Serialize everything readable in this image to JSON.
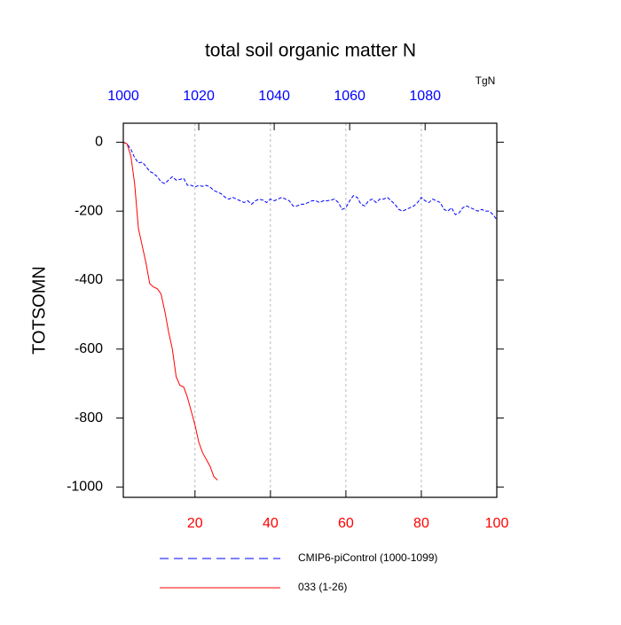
{
  "chart_data": {
    "type": "line",
    "title": "total soil organic matter N",
    "ylabel": "TOTSOMN",
    "x2_units": "TgN",
    "xlim": [
      1,
      100
    ],
    "xticks": [
      20,
      40,
      60,
      80,
      100
    ],
    "xtick_color": "#ff0000",
    "x2lim": [
      1000,
      1099
    ],
    "x2ticks": [
      1000,
      1020,
      1040,
      1060,
      1080
    ],
    "x2tick_color": "#0000ff",
    "ylim": [
      -1030,
      55
    ],
    "yticks": [
      0,
      -200,
      -400,
      -600,
      -800,
      -1000
    ],
    "grid": true,
    "series": [
      {
        "name": "CMIP6-piControl (1000-1099)",
        "color": "#0000ff",
        "dashed": true,
        "x": [
          1,
          2,
          3,
          4,
          5,
          6,
          7,
          8,
          9,
          10,
          11,
          12,
          13,
          14,
          15,
          16,
          17,
          18,
          19,
          20,
          21,
          22,
          23,
          24,
          25,
          26,
          27,
          28,
          29,
          30,
          31,
          32,
          33,
          34,
          35,
          36,
          37,
          38,
          39,
          40,
          41,
          42,
          43,
          44,
          45,
          46,
          47,
          48,
          49,
          50,
          51,
          52,
          53,
          54,
          55,
          56,
          57,
          58,
          59,
          60,
          61,
          62,
          63,
          64,
          65,
          66,
          67,
          68,
          69,
          70,
          71,
          72,
          73,
          74,
          75,
          76,
          77,
          78,
          79,
          80,
          81,
          82,
          83,
          84,
          85,
          86,
          87,
          88,
          89,
          90,
          91,
          92,
          93,
          94,
          95,
          96,
          97,
          98,
          99,
          100
        ],
        "values": [
          0,
          -5,
          -20,
          -45,
          -60,
          -58,
          -70,
          -85,
          -90,
          -100,
          -115,
          -120,
          -110,
          -100,
          -110,
          -108,
          -105,
          -125,
          -125,
          -130,
          -125,
          -128,
          -125,
          -130,
          -140,
          -145,
          -150,
          -160,
          -165,
          -160,
          -165,
          -170,
          -175,
          -170,
          -180,
          -170,
          -165,
          -168,
          -175,
          -165,
          -170,
          -165,
          -160,
          -165,
          -170,
          -185,
          -185,
          -180,
          -180,
          -175,
          -170,
          -170,
          -175,
          -170,
          -170,
          -168,
          -165,
          -175,
          -195,
          -190,
          -170,
          -155,
          -160,
          -180,
          -185,
          -170,
          -165,
          -175,
          -165,
          -165,
          -160,
          -170,
          -180,
          -195,
          -200,
          -195,
          -190,
          -185,
          -175,
          -160,
          -170,
          -175,
          -165,
          -170,
          -175,
          -195,
          -200,
          -190,
          -210,
          -205,
          -190,
          -185,
          -190,
          -195,
          -200,
          -195,
          -200,
          -200,
          -210,
          -225
        ]
      },
      {
        "name": "033 (1-26)",
        "color": "#ff0000",
        "dashed": false,
        "x": [
          1,
          2,
          3,
          4,
          5,
          6,
          7,
          8,
          9,
          10,
          11,
          12,
          13,
          14,
          15,
          16,
          17,
          18,
          19,
          20,
          21,
          22,
          23,
          24,
          25,
          26
        ],
        "values": [
          0,
          -5,
          -40,
          -120,
          -250,
          -300,
          -350,
          -410,
          -420,
          -425,
          -440,
          -490,
          -550,
          -600,
          -680,
          -705,
          -710,
          -740,
          -780,
          -820,
          -870,
          -900,
          -920,
          -940,
          -970,
          -980
        ]
      }
    ]
  }
}
